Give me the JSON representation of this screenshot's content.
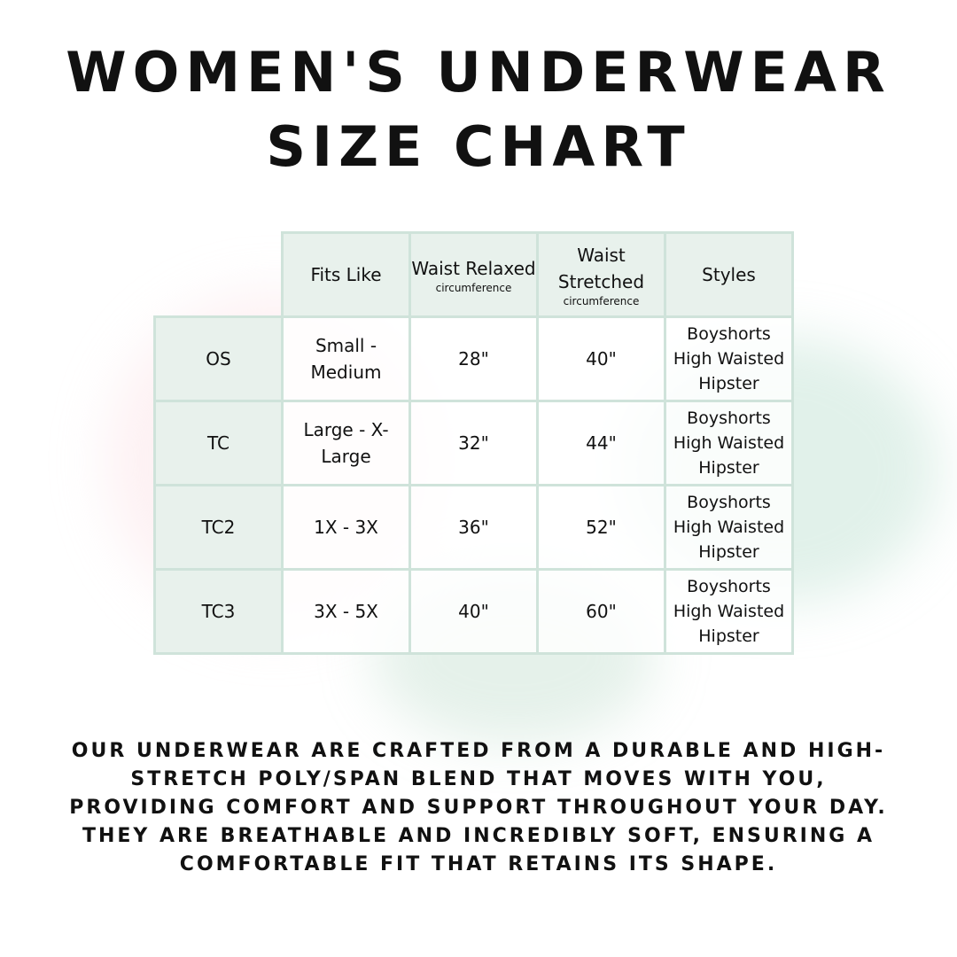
{
  "title": {
    "line1": "WOMEN'S UNDERWEAR",
    "line2": "SIZE CHART"
  },
  "colors": {
    "border": "#cfe3da",
    "header_fill": "#e8f1ec",
    "text": "#111111"
  },
  "table": {
    "headers": [
      {
        "main": "Fits Like",
        "sub": ""
      },
      {
        "main": "Waist Relaxed",
        "sub": "circumference"
      },
      {
        "main": "Waist Stretched",
        "sub": "circumference"
      },
      {
        "main": "Styles",
        "sub": ""
      }
    ],
    "rows": [
      {
        "size": "OS",
        "fits": "Small - Medium",
        "relaxed": "28\"",
        "stretched": "40\"",
        "styles": [
          "Boyshorts",
          "High Waisted",
          "Hipster"
        ]
      },
      {
        "size": "TC",
        "fits": "Large - X-Large",
        "relaxed": "32\"",
        "stretched": "44\"",
        "styles": [
          "Boyshorts",
          "High Waisted",
          "Hipster"
        ]
      },
      {
        "size": "TC2",
        "fits": "1X - 3X",
        "relaxed": "36\"",
        "stretched": "52\"",
        "styles": [
          "Boyshorts",
          "High Waisted",
          "Hipster"
        ]
      },
      {
        "size": "TC3",
        "fits": "3X - 5X",
        "relaxed": "40\"",
        "stretched": "60\"",
        "styles": [
          "Boyshorts",
          "High Waisted",
          "Hipster"
        ]
      }
    ]
  },
  "description": "Our underwear are crafted from a durable and high-stretch poly/span blend that moves with you, providing comfort and support throughout your day. They are breathable and incredibly soft, ensuring a comfortable fit that retains its shape."
}
